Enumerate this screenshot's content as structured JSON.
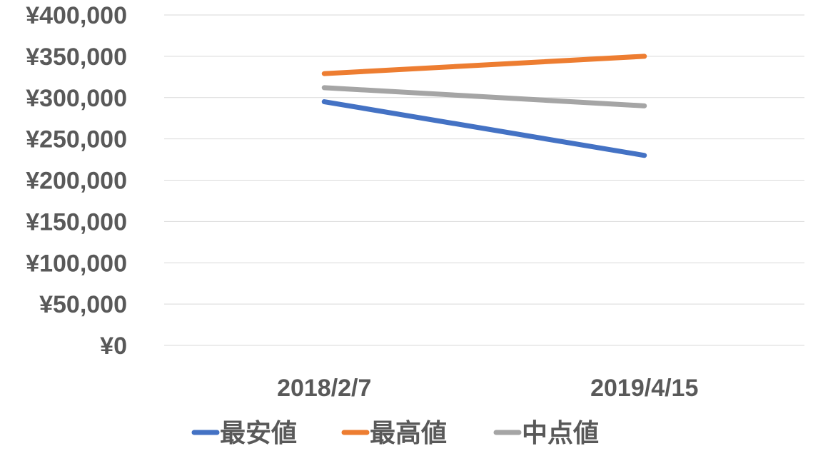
{
  "chart_data": {
    "type": "line",
    "categories": [
      "2018/2/7",
      "2019/4/15"
    ],
    "series": [
      {
        "name": "最安値",
        "values": [
          295000,
          230000
        ],
        "color": "#4472C4"
      },
      {
        "name": "最高値",
        "values": [
          329000,
          350000
        ],
        "color": "#ED7D31"
      },
      {
        "name": "中点値",
        "values": [
          312000,
          290000
        ],
        "color": "#A5A5A5"
      }
    ],
    "ylim": [
      0,
      400000
    ],
    "yticks": [
      0,
      50000,
      100000,
      150000,
      200000,
      250000,
      300000,
      350000,
      400000
    ],
    "ytick_labels": [
      "¥0",
      "¥50,000",
      "¥100,000",
      "¥150,000",
      "¥200,000",
      "¥250,000",
      "¥300,000",
      "¥350,000",
      "¥400,000"
    ],
    "grid": true,
    "legend_position": "bottom"
  }
}
